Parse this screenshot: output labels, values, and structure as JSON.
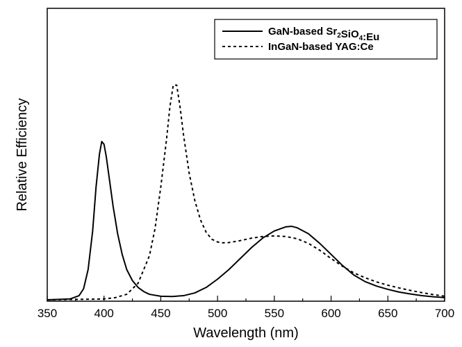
{
  "chart_data": {
    "type": "line",
    "title": "",
    "xlabel": "Wavelength (nm)",
    "ylabel": "Relative Efficiency",
    "xlim": [
      350,
      700
    ],
    "ylim": [
      0,
      1
    ],
    "x_ticks": [
      350,
      400,
      450,
      500,
      550,
      600,
      650,
      700
    ],
    "y_ticks_labeled": false,
    "grid": false,
    "legend_position": "top-right",
    "series": [
      {
        "name_parts": [
          {
            "text": "GaN-based Sr",
            "sub": false
          },
          {
            "text": "2",
            "sub": true
          },
          {
            "text": "SiO",
            "sub": false
          },
          {
            "text": "4",
            "sub": true
          },
          {
            "text": ":Eu",
            "sub": false
          }
        ],
        "style": "solid",
        "color": "#000000",
        "x": [
          350,
          370,
          378,
          382,
          386,
          390,
          393,
          396,
          398,
          400,
          402,
          405,
          408,
          412,
          416,
          420,
          425,
          430,
          435,
          440,
          450,
          460,
          470,
          480,
          490,
          500,
          510,
          520,
          530,
          540,
          550,
          560,
          565,
          570,
          580,
          590,
          600,
          610,
          620,
          630,
          640,
          650,
          660,
          670,
          680,
          690,
          700
        ],
        "y": [
          0.0,
          0.003,
          0.015,
          0.04,
          0.11,
          0.25,
          0.41,
          0.53,
          0.575,
          0.565,
          0.52,
          0.43,
          0.34,
          0.24,
          0.165,
          0.11,
          0.07,
          0.045,
          0.03,
          0.02,
          0.013,
          0.012,
          0.015,
          0.025,
          0.045,
          0.075,
          0.11,
          0.15,
          0.19,
          0.225,
          0.25,
          0.265,
          0.267,
          0.262,
          0.24,
          0.205,
          0.165,
          0.125,
          0.09,
          0.066,
          0.05,
          0.038,
          0.028,
          0.021,
          0.015,
          0.011,
          0.008
        ]
      },
      {
        "name_parts": [
          {
            "text": "InGaN-based YAG:Ce",
            "sub": false
          }
        ],
        "style": "dashed",
        "color": "#000000",
        "x": [
          350,
          400,
          410,
          420,
          430,
          440,
          445,
          450,
          455,
          458,
          461,
          464,
          467,
          470,
          475,
          480,
          485,
          490,
          495,
          500,
          505,
          510,
          520,
          530,
          540,
          550,
          560,
          570,
          580,
          590,
          600,
          610,
          620,
          630,
          640,
          650,
          660,
          670,
          680,
          690,
          700
        ],
        "y": [
          0.0,
          0.003,
          0.008,
          0.02,
          0.06,
          0.16,
          0.26,
          0.41,
          0.58,
          0.7,
          0.78,
          0.78,
          0.7,
          0.6,
          0.46,
          0.36,
          0.29,
          0.245,
          0.22,
          0.21,
          0.207,
          0.208,
          0.215,
          0.224,
          0.23,
          0.232,
          0.23,
          0.222,
          0.205,
          0.18,
          0.15,
          0.122,
          0.098,
          0.08,
          0.065,
          0.053,
          0.043,
          0.034,
          0.026,
          0.019,
          0.013
        ]
      }
    ]
  }
}
